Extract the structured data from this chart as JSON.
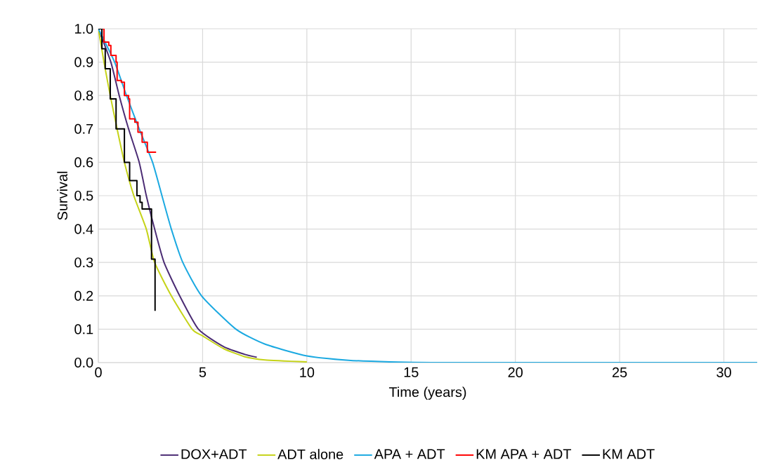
{
  "chart_data": {
    "type": "line",
    "xlabel": "Time (years)",
    "ylabel": "Survival",
    "xlim": [
      0,
      31.6
    ],
    "ylim": [
      0,
      1
    ],
    "xticks": [
      0,
      5,
      10,
      15,
      20,
      25,
      30
    ],
    "yticks": [
      {
        "value": 0,
        "label": "0.0"
      },
      {
        "value": 0.1,
        "label": "0.1"
      },
      {
        "value": 0.2,
        "label": "0.2"
      },
      {
        "value": 0.3,
        "label": "0.3"
      },
      {
        "value": 0.4,
        "label": "0.4"
      },
      {
        "value": 0.5,
        "label": "0.5"
      },
      {
        "value": 0.6,
        "label": "0.6"
      },
      {
        "value": 0.7,
        "label": "0.7"
      },
      {
        "value": 0.8,
        "label": "0.8"
      },
      {
        "value": 0.9,
        "label": "0.9"
      },
      {
        "value": 1,
        "label": "1.0"
      }
    ],
    "grid": true,
    "legend": "bottom",
    "marker": "none",
    "line_style": "solid",
    "series": [
      {
        "name": "DOX+ADT",
        "color": "#4b2c74",
        "x": [
          0,
          0.6,
          1.0,
          1.45,
          1.96,
          2.3,
          2.7,
          3.15,
          3.9,
          4.8,
          6,
          7,
          7.6
        ],
        "values": [
          1,
          0.9,
          0.8,
          0.7,
          0.6,
          0.5,
          0.4,
          0.3,
          0.2,
          0.1,
          0.048,
          0.025,
          0.016
        ]
      },
      {
        "name": "ADT alone",
        "color": "#c5d318",
        "x": [
          0,
          0.27,
          0.57,
          0.9,
          1.25,
          1.7,
          2.3,
          2.7,
          3.5,
          4.5,
          5,
          6,
          7,
          8,
          10
        ],
        "values": [
          1,
          0.9,
          0.8,
          0.7,
          0.6,
          0.5,
          0.4,
          0.3,
          0.2,
          0.1,
          0.08,
          0.042,
          0.018,
          0.008,
          0.002
        ]
      },
      {
        "name": "APA + ADT",
        "color": "#1ba9e1",
        "x": [
          0,
          0.78,
          1.35,
          1.96,
          2.6,
          3.05,
          3.5,
          4.05,
          4.95,
          6.6,
          8,
          10,
          12,
          14,
          16,
          20,
          25,
          31.6
        ],
        "values": [
          1,
          0.9,
          0.8,
          0.7,
          0.6,
          0.5,
          0.4,
          0.3,
          0.2,
          0.1,
          0.055,
          0.02,
          0.007,
          0.002,
          0,
          0,
          0,
          0
        ]
      },
      {
        "name": "KM APA + ADT",
        "type": "step",
        "color": "#ff0000",
        "x": [
          0,
          0.27,
          0.5,
          0.6,
          0.85,
          0.9,
          1.1,
          1.25,
          1.45,
          1.5,
          1.75,
          1.9,
          2.1,
          2.35,
          2.77
        ],
        "values": [
          1,
          0.96,
          0.95,
          0.92,
          0.9,
          0.845,
          0.84,
          0.8,
          0.79,
          0.73,
          0.72,
          0.69,
          0.66,
          0.63,
          0.63
        ]
      },
      {
        "name": "KM ADT",
        "type": "step",
        "color": "#000000",
        "x": [
          0,
          0.17,
          0.33,
          0.57,
          0.85,
          1.25,
          1.5,
          1.85,
          2.0,
          2.1,
          2.55,
          2.72
        ],
        "values": [
          1,
          0.94,
          0.88,
          0.79,
          0.7,
          0.6,
          0.545,
          0.5,
          0.48,
          0.46,
          0.31,
          0.155
        ]
      }
    ]
  }
}
